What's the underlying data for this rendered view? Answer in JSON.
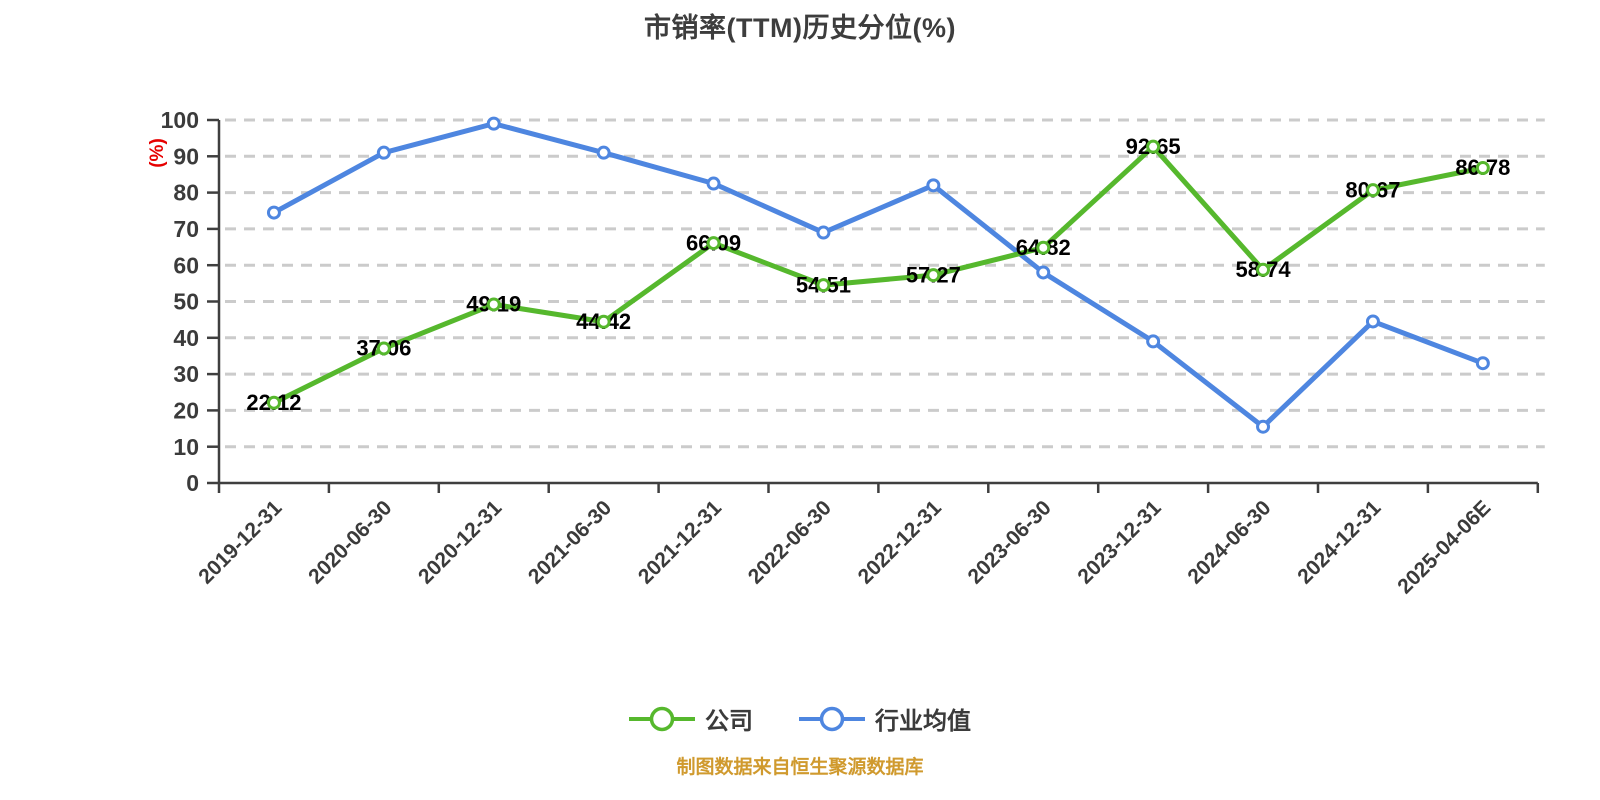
{
  "title": "市销率(TTM)历史分位(%)",
  "y_axis_name": "(%)",
  "source_note": "制图数据来自恒生聚源数据库",
  "colors": {
    "title": "#3d3d3d",
    "axis": "#3f3f3f",
    "grid": "#cbcbcb",
    "tick_label": "#3b3b3b",
    "value_label": "#000000",
    "y_axis_name": "#e60000",
    "source_note": "#d09a2e",
    "marker_fill": "#ffffff"
  },
  "legend": {
    "items": [
      {
        "id": "company",
        "label": "公司",
        "color": "#56b82d"
      },
      {
        "id": "industry-average",
        "label": "行业均值",
        "color": "#4e86e0"
      }
    ]
  },
  "chart_data": {
    "type": "line",
    "title": "市销率(TTM)历史分位(%)",
    "ylabel": "(%)",
    "ylim": [
      0,
      100
    ],
    "y_tick_step": 10,
    "grid": "horizontal-dashed",
    "legend_position": "bottom",
    "categories": [
      "2019-12-31",
      "2020-06-30",
      "2020-12-31",
      "2021-06-30",
      "2021-12-31",
      "2022-06-30",
      "2022-12-31",
      "2023-06-30",
      "2023-12-31",
      "2024-06-30",
      "2024-12-31",
      "2025-04-06E"
    ],
    "series": [
      {
        "name": "公司",
        "color": "#56b82d",
        "show_value_labels": true,
        "values": [
          22.12,
          37.06,
          49.19,
          44.42,
          66.09,
          54.51,
          57.27,
          64.82,
          92.65,
          58.74,
          80.67,
          86.78
        ]
      },
      {
        "name": "行业均值",
        "color": "#4e86e0",
        "show_value_labels": false,
        "values": [
          74.5,
          91,
          99,
          91,
          82.5,
          69,
          82,
          58,
          39,
          15.5,
          44.5,
          33
        ]
      }
    ]
  }
}
